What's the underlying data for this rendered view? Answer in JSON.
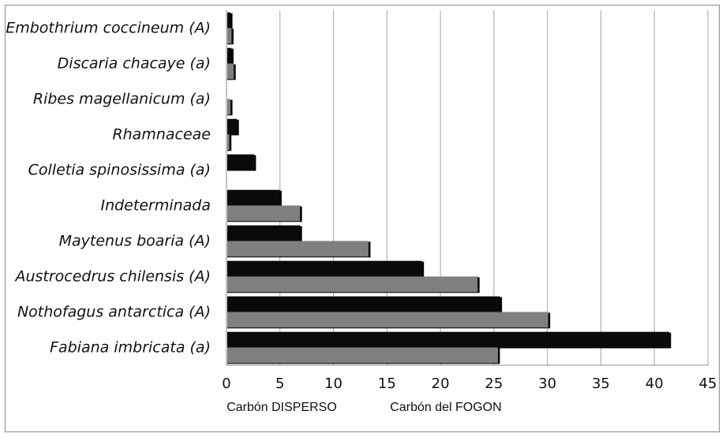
{
  "chart_data": {
    "type": "bar",
    "orientation": "horizontal",
    "categories": [
      "Embothrium coccineum (A)",
      "Discaria chacaye (a)",
      "Ribes magellanicum (a)",
      "Rhamnaceae",
      "Colletia spinosissima (a)",
      "Indeterminada",
      "Maytenus boaria (A)",
      "Austrocedrus chilensis (A)",
      "Nothofagus antarctica (A)",
      "Fabiana imbricata (a)"
    ],
    "series": [
      {
        "name": "Carbón DISPERSO",
        "color": "#0a0a0a",
        "values": [
          0.3,
          0.4,
          0.0,
          0.9,
          2.5,
          4.9,
          6.8,
          18.2,
          25.5,
          41.3
        ]
      },
      {
        "name": "Carbón del FOGON",
        "color": "#7f7f7f",
        "values": [
          0.4,
          0.6,
          0.3,
          0.2,
          0.0,
          6.8,
          13.2,
          23.4,
          30.0,
          25.3
        ]
      }
    ],
    "xlim": [
      0,
      45
    ],
    "xticks": [
      0,
      5,
      10,
      15,
      20,
      25,
      30,
      35,
      40,
      45
    ],
    "grid": "vertical",
    "legend": "bottom",
    "title": "",
    "xlabel": "",
    "ylabel": ""
  }
}
